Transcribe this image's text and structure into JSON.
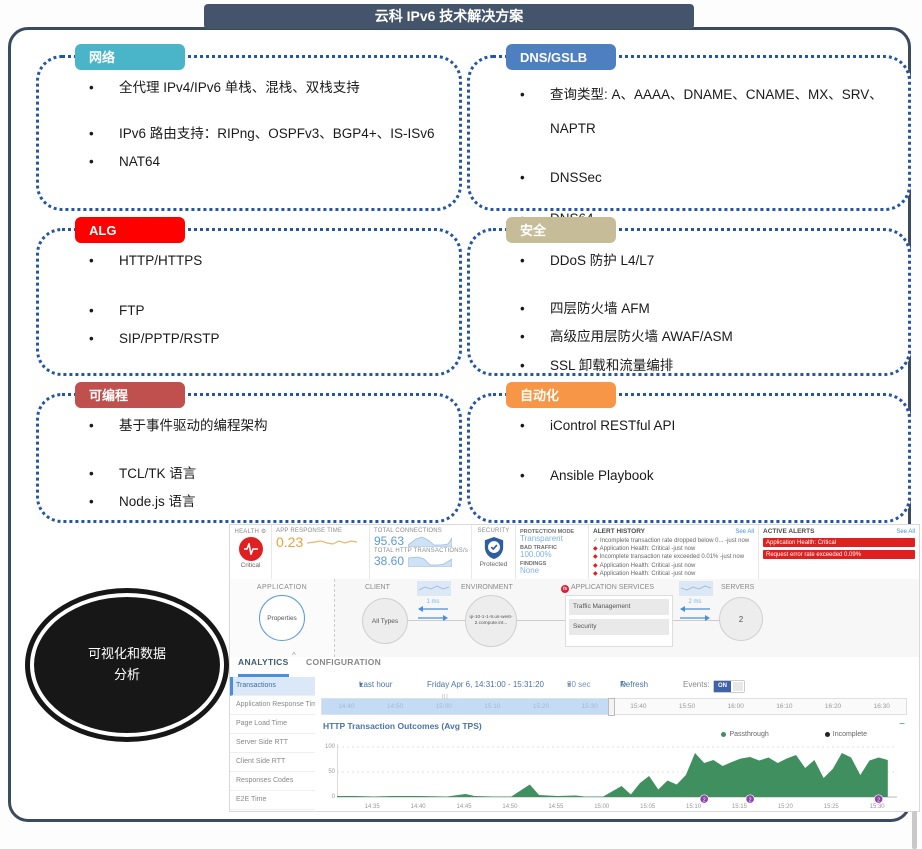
{
  "icons": {
    "gear": "⚙",
    "check": "✓",
    "alert_diamond": "◆",
    "dropdown": "▾",
    "refresh": "↻",
    "minimize": "−",
    "caret_up": "^",
    "grip": "|||"
  },
  "slide": {
    "title": "云科 IPv6 技术解决方案",
    "ellipse_label": "可视化和数据分析",
    "feature_boxes": [
      {
        "tag": "网络",
        "tag_color": "#4ab5c9",
        "bullets": [
          "全代理 IPv4/IPv6 单栈、混栈、双栈支持",
          "IPv6 路由支持：RIPng、OSPFv3、BGP4+、IS-ISv6",
          "NAT64"
        ]
      },
      {
        "tag": "DNS/GSLB",
        "tag_color": "#4e7fc0",
        "bullets": [
          "查询类型: A、AAAA、DNAME、CNAME、MX、SRV、NAPTR",
          "DNSSec",
          "DNS64"
        ]
      },
      {
        "tag": "ALG",
        "tag_color": "#fe0000",
        "bullets": [
          "HTTP/HTTPS",
          "FTP",
          "SIP/PPTP/RSTP"
        ]
      },
      {
        "tag": "安全",
        "tag_color": "#c6bd98",
        "bullets": [
          "DDoS 防护 L4/L7",
          "四层防火墙 AFM",
          "高级应用层防火墙 AWAF/ASM",
          "SSL 卸载和流量编排"
        ]
      },
      {
        "tag": "可编程",
        "tag_color": "#c0504d",
        "bullets": [
          "基于事件驱动的编程架构",
          "TCL/TK 语言",
          "Node.js 语言"
        ]
      },
      {
        "tag": "自动化",
        "tag_color": "#f79646",
        "bullets": [
          "iControl RESTful API",
          "Ansible Playbook"
        ]
      }
    ]
  },
  "dashboard": {
    "kpi": {
      "health_label": "HEALTH",
      "health_status": "Critical",
      "app_response_time_label": "APP RESPONSE TIME",
      "app_response_time": "0.23",
      "total_connections_label": "TOTAL CONNECTIONS",
      "total_connections": "95.63",
      "total_http_label": "TOTAL HTTP TRANSACTIONS/s",
      "total_http": "38.60",
      "security_label": "SECURITY",
      "security_status": "Protected",
      "protection_mode_label": "PROTECTION MODE",
      "protection_mode": "Transparent",
      "bad_traffic_label": "BAD TRAFFIC",
      "bad_traffic": "100.00%",
      "findings_label": "FINDINGS",
      "findings": "None"
    },
    "alert_history": {
      "title": "ALERT HISTORY",
      "see_all": "See All",
      "items": [
        {
          "icon": "check",
          "text": "Incomplete transaction rate dropped below 0... -just now"
        },
        {
          "icon": "alert",
          "text": "Application Health: Critical -just now"
        },
        {
          "icon": "alert",
          "text": "Incomplete transaction rate exceeded 0.01% -just now"
        },
        {
          "icon": "alert",
          "text": "Application Health: Critical -just now"
        },
        {
          "icon": "alert",
          "text": "Application Health: Critical -just now"
        }
      ]
    },
    "active_alerts": {
      "title": "ACTIVE ALERTS",
      "see_all": "See All",
      "items": [
        "Application Health: Critical",
        "Request error rate exceeded 0.09%"
      ]
    },
    "map": {
      "application_label": "APPLICATION",
      "application_node": "Properties",
      "client_label": "CLIENT",
      "client_node": "All Types",
      "latency_client": "1 ms",
      "environment_label": "ENVIRONMENT",
      "environment_node": "ip-10-1-1-9.us-west-2.compute.int...",
      "services_label": "APPLICATION SERVICES",
      "services_logo": "f5",
      "services": [
        "Traffic Management",
        "Security"
      ],
      "latency_server": "2 ms",
      "servers_label": "SERVERS",
      "servers_node": "2"
    },
    "tabs": [
      "ANALYTICS",
      "CONFIGURATION"
    ],
    "sidebar": [
      "Transactions",
      "Application Response Time",
      "Page Load Time",
      "Server Side RTT",
      "Client Side RTT",
      "Responses Codes",
      "E2E Time"
    ],
    "timebar": {
      "range_preset": "Last hour",
      "range_text": "Friday Apr 6, 14:31:00 - 15:31:20",
      "interval": "30 sec",
      "refresh_label": "Refresh",
      "events_label": "Events:",
      "events_state": "ON",
      "ticks": [
        "14:40",
        "14:50",
        "15:00",
        "15:10",
        "15:20",
        "15:30",
        "15:40",
        "15:50",
        "16:00",
        "16:10",
        "16:20",
        "16:30"
      ]
    }
  },
  "chart_data": {
    "type": "area",
    "title": "HTTP Transaction Outcomes (Avg TPS)",
    "legend_position": "top-right",
    "grid": "horizontal-dotted",
    "ylim": [
      0,
      100
    ],
    "y_ticks": [
      0,
      50,
      100
    ],
    "x_range": [
      "14:31",
      "15:32"
    ],
    "x_ticks": [
      "14:35",
      "14:40",
      "14:45",
      "14:50",
      "14:55",
      "15:00",
      "15:05",
      "15:10",
      "15:15",
      "15:20",
      "15:25",
      "15:30"
    ],
    "series": [
      {
        "name": "Passthrough",
        "color": "#3f8f5f",
        "points": [
          [
            "14:31",
            2
          ],
          [
            "14:33",
            2
          ],
          [
            "14:35",
            1
          ],
          [
            "14:37",
            2
          ],
          [
            "14:40",
            2
          ],
          [
            "14:43",
            1
          ],
          [
            "14:45",
            6
          ],
          [
            "14:46",
            2
          ],
          [
            "14:48",
            1
          ],
          [
            "14:50",
            1
          ],
          [
            "14:52",
            25
          ],
          [
            "14:53",
            4
          ],
          [
            "14:55",
            2
          ],
          [
            "14:57",
            3
          ],
          [
            "14:58",
            1
          ],
          [
            "15:00",
            1
          ],
          [
            "15:02",
            22
          ],
          [
            "15:03",
            5
          ],
          [
            "15:04",
            28
          ],
          [
            "15:05",
            42
          ],
          [
            "15:06",
            15
          ],
          [
            "15:07",
            33
          ],
          [
            "15:08",
            25
          ],
          [
            "15:09",
            44
          ],
          [
            "15:10",
            88
          ],
          [
            "15:11",
            68
          ],
          [
            "15:12",
            74
          ],
          [
            "15:13",
            62
          ],
          [
            "15:14",
            70
          ],
          [
            "15:15",
            77
          ],
          [
            "15:16",
            80
          ],
          [
            "15:17",
            73
          ],
          [
            "15:18",
            79
          ],
          [
            "15:19",
            68
          ],
          [
            "15:20",
            77
          ],
          [
            "15:21",
            84
          ],
          [
            "15:22",
            58
          ],
          [
            "15:23",
            74
          ],
          [
            "15:24",
            38
          ],
          [
            "15:25",
            56
          ],
          [
            "15:26",
            88
          ],
          [
            "15:27",
            79
          ],
          [
            "15:28",
            44
          ],
          [
            "15:29",
            73
          ],
          [
            "15:30",
            79
          ],
          [
            "15:31",
            74
          ]
        ]
      },
      {
        "name": "Incomplete",
        "color": "#222222",
        "points": []
      }
    ],
    "event_markers": [
      {
        "time": "15:11",
        "label": "2"
      },
      {
        "time": "15:16",
        "label": "2"
      },
      {
        "time": "15:30",
        "label": "2"
      }
    ]
  }
}
